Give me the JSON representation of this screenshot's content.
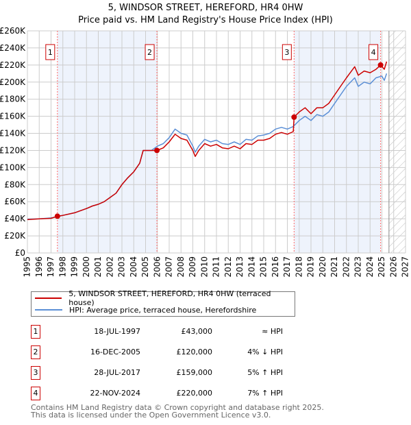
{
  "chart_data": {
    "type": "line",
    "title": "5, WINDSOR STREET, HEREFORD, HR4 0HW",
    "subtitle": "Price paid vs. HM Land Registry's House Price Index (HPI)",
    "xlim": [
      1995,
      2027
    ],
    "ylim": [
      0,
      260000
    ],
    "y_ticks": [
      0,
      20000,
      40000,
      60000,
      80000,
      100000,
      120000,
      140000,
      160000,
      180000,
      200000,
      220000,
      240000,
      260000
    ],
    "y_tick_labels": [
      "£0",
      "£20K",
      "£40K",
      "£60K",
      "£80K",
      "£100K",
      "£120K",
      "£140K",
      "£160K",
      "£180K",
      "£200K",
      "£220K",
      "£240K",
      "£260K"
    ],
    "x_ticks": [
      1995,
      1996,
      1997,
      1998,
      1999,
      2000,
      2001,
      2002,
      2003,
      2004,
      2005,
      2006,
      2007,
      2008,
      2009,
      2010,
      2011,
      2012,
      2013,
      2014,
      2015,
      2016,
      2017,
      2018,
      2019,
      2020,
      2021,
      2022,
      2023,
      2024,
      2025,
      2026,
      2027
    ],
    "grid": true,
    "forecast_hatch_from": 2025.6,
    "colors": {
      "property": "#cc0000",
      "hpi": "#5b8fd6",
      "shade": "#eef3fc",
      "marker_line": "#ff6666"
    },
    "series": [
      {
        "name": "5, WINDSOR STREET, HEREFORD, HR4 0HW (terraced house)",
        "color": "#cc0000",
        "x": [
          1995,
          1996,
          1997,
          1997.54,
          1998,
          1999,
          2000,
          2000.5,
          2001,
          2001.5,
          2002,
          2002.5,
          2003,
          2003.5,
          2004,
          2004.5,
          2004.8,
          2005.5,
          2005.96,
          2006.5,
          2007,
          2007.5,
          2008,
          2008.5,
          2009,
          2009.2,
          2009.5,
          2010,
          2010.5,
          2011,
          2011.5,
          2012,
          2012.5,
          2013,
          2013.5,
          2014,
          2014.5,
          2015,
          2015.5,
          2016,
          2016.5,
          2017,
          2017.5,
          2017.57,
          2018,
          2018.5,
          2019,
          2019.5,
          2020,
          2020.5,
          2021,
          2021.5,
          2022,
          2022.7,
          2023,
          2023.5,
          2024,
          2024.5,
          2024.9,
          2025.2,
          2025.4
        ],
        "y": [
          39000,
          40000,
          40500,
          43000,
          44000,
          47000,
          52000,
          55000,
          57000,
          60000,
          65000,
          70000,
          80000,
          88000,
          95000,
          105000,
          120000,
          120000,
          120000,
          123000,
          130000,
          139000,
          134000,
          132000,
          120000,
          113000,
          120000,
          128000,
          125000,
          127000,
          123000,
          122000,
          125000,
          122000,
          128000,
          127000,
          132000,
          132000,
          134000,
          139000,
          141000,
          139000,
          142000,
          159000,
          165000,
          170000,
          163000,
          170000,
          170000,
          175000,
          185000,
          195000,
          205000,
          218000,
          208000,
          213000,
          211000,
          215000,
          220000,
          215000,
          224000
        ]
      },
      {
        "name": "HPI: Average price, terraced house, Herefordshire",
        "color": "#5b8fd6",
        "x": [
          1995,
          1996,
          1997,
          1997.54,
          1998,
          1999,
          2000,
          2000.5,
          2001,
          2001.5,
          2002,
          2002.5,
          2003,
          2003.5,
          2004,
          2004.5,
          2004.8,
          2005.5,
          2006,
          2006.5,
          2007,
          2007.5,
          2008,
          2008.5,
          2009,
          2009.2,
          2009.5,
          2010,
          2010.5,
          2011,
          2011.5,
          2012,
          2012.5,
          2013,
          2013.5,
          2014,
          2014.5,
          2015,
          2015.5,
          2016,
          2016.5,
          2017,
          2017.5,
          2018,
          2018.5,
          2019,
          2019.5,
          2020,
          2020.5,
          2021,
          2021.5,
          2022,
          2022.7,
          2023,
          2023.5,
          2024,
          2024.5,
          2025,
          2025.2,
          2025.4
        ],
        "y": [
          39500,
          40000,
          41000,
          42500,
          44000,
          47000,
          52000,
          55000,
          57000,
          60000,
          65000,
          70000,
          80000,
          88000,
          95000,
          105000,
          120000,
          120000,
          125000,
          128000,
          135000,
          145000,
          140000,
          138000,
          125000,
          118000,
          125000,
          133000,
          130000,
          132000,
          128000,
          127000,
          130000,
          127000,
          133000,
          132000,
          137000,
          138000,
          140000,
          145000,
          147000,
          145000,
          148000,
          155000,
          160000,
          155000,
          162000,
          160000,
          165000,
          175000,
          185000,
          195000,
          205000,
          195000,
          200000,
          198000,
          205000,
          207000,
          202000,
          210000
        ]
      }
    ],
    "sales": [
      {
        "label": "1",
        "x": 1997.54,
        "price": 43000
      },
      {
        "label": "2",
        "x": 2005.96,
        "price": 120000
      },
      {
        "label": "3",
        "x": 2017.57,
        "price": 159000
      },
      {
        "label": "4",
        "x": 2024.89,
        "price": 220000
      }
    ],
    "legend": {
      "placement": "below",
      "items": [
        "5, WINDSOR STREET, HEREFORD, HR4 0HW (terraced house)",
        "HPI: Average price, terraced house, Herefordshire"
      ]
    }
  },
  "table": [
    {
      "num": "1",
      "date": "18-JUL-1997",
      "price": "£43,000",
      "hpi": "≈ HPI"
    },
    {
      "num": "2",
      "date": "16-DEC-2005",
      "price": "£120,000",
      "hpi": "4% ↓ HPI"
    },
    {
      "num": "3",
      "date": "28-JUL-2017",
      "price": "£159,000",
      "hpi": "5% ↑ HPI"
    },
    {
      "num": "4",
      "date": "22-NOV-2024",
      "price": "£220,000",
      "hpi": "7% ↑ HPI"
    }
  ],
  "footer": {
    "line1": "Contains HM Land Registry data © Crown copyright and database right 2025.",
    "line2": "This data is licensed under the Open Government Licence v3.0."
  }
}
